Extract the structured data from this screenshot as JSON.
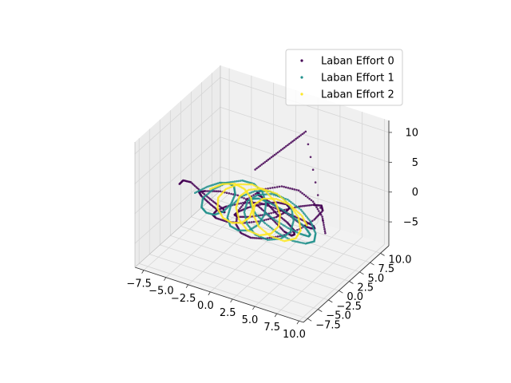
{
  "chart_data": {
    "type": "scatter",
    "projection": "3d",
    "title": "",
    "xlabel": "",
    "ylabel": "",
    "zlabel": "",
    "xlim": [
      -8.5,
      10.5
    ],
    "ylim": [
      -8.5,
      12
    ],
    "zlim": [
      -9,
      12
    ],
    "x_ticks": [
      "−7.5",
      "−5.0",
      "−2.5",
      "0.0",
      "2.5",
      "5.0",
      "7.5",
      "10.0"
    ],
    "y_ticks": [
      "−7.5",
      "−5.0",
      "−2.5",
      "0.0",
      "2.5",
      "5.0",
      "7.5",
      "10.0"
    ],
    "z_ticks": [
      "−5",
      "0",
      "5",
      "10"
    ],
    "x_tick_values": [
      -7.5,
      -5,
      -2.5,
      0,
      2.5,
      5,
      7.5,
      10
    ],
    "y_tick_values": [
      -7.5,
      -5,
      -2.5,
      0,
      2.5,
      5,
      7.5,
      10
    ],
    "z_tick_values": [
      -5,
      0,
      5,
      10
    ],
    "grid": true,
    "legend_position": "top-right",
    "series": [
      {
        "name": "Laban Effort 0",
        "color": "#440154",
        "points": [
          [
            -7,
            -1,
            1
          ],
          [
            -6.2,
            -1.8,
            2.5
          ],
          [
            -5,
            -2.5,
            3.2
          ],
          [
            -3.6,
            -3,
            2.6
          ],
          [
            -2.5,
            -2.5,
            1.2
          ],
          [
            -1.8,
            -1.5,
            -0.4
          ],
          [
            -2.2,
            -0.4,
            -1.8
          ],
          [
            -3.2,
            0.4,
            -2.6
          ],
          [
            -4.4,
            0.8,
            -2.2
          ],
          [
            -5.2,
            0.4,
            -1.0
          ],
          [
            -5.0,
            -0.6,
            0.4
          ],
          [
            -4.0,
            -1.2,
            1.4
          ],
          [
            -2.4,
            -1.0,
            2.0
          ],
          [
            -0.8,
            -0.2,
            1.6
          ],
          [
            0.6,
            0.8,
            0.4
          ],
          [
            1.4,
            1.6,
            -1.2
          ],
          [
            2.2,
            2.2,
            -2.8
          ],
          [
            3.4,
            2.0,
            -3.8
          ],
          [
            4.6,
            1.2,
            -3.4
          ],
          [
            5.4,
            0.2,
            -2.2
          ],
          [
            5.8,
            -0.8,
            -0.6
          ],
          [
            5.4,
            -1.6,
            1.0
          ],
          [
            4.4,
            -2.0,
            2.2
          ],
          [
            3.2,
            -1.6,
            3.0
          ],
          [
            2.0,
            -0.8,
            3.4
          ],
          [
            1.2,
            0.2,
            2.8
          ],
          [
            0.8,
            1.4,
            1.4
          ],
          [
            1.2,
            2.6,
            0.0
          ],
          [
            2.2,
            3.4,
            -1.4
          ],
          [
            3.6,
            3.6,
            -2.4
          ],
          [
            5.0,
            3.0,
            -2.6
          ],
          [
            6.4,
            2.0,
            -1.8
          ],
          [
            7.4,
            0.8,
            -0.6
          ],
          [
            7.8,
            -0.4,
            0.8
          ],
          [
            7.2,
            -1.4,
            2.0
          ],
          [
            6.0,
            -2.0,
            2.8
          ],
          [
            4.4,
            -2.2,
            3.2
          ],
          [
            2.8,
            -2.6,
            3.6
          ],
          [
            1.2,
            -3.2,
            3.2
          ],
          [
            -0.4,
            -3.8,
            2.2
          ],
          [
            -1.6,
            -3.6,
            0.8
          ],
          [
            -2.4,
            -2.8,
            -0.8
          ],
          [
            -2.6,
            -1.6,
            -2.2
          ],
          [
            -2.0,
            -0.2,
            -3.4
          ],
          [
            -0.8,
            1.0,
            -3.8
          ],
          [
            0.8,
            1.8,
            -3.2
          ],
          [
            2.4,
            2.2,
            -2.0
          ],
          [
            3.6,
            2.0,
            -0.4
          ],
          [
            4.4,
            1.2,
            1.2
          ],
          [
            4.6,
            0.0,
            2.6
          ],
          [
            4.0,
            -1.2,
            3.4
          ],
          [
            2.8,
            -2.0,
            3.0
          ],
          [
            1.4,
            -2.4,
            2.0
          ],
          [
            0.2,
            -2.2,
            0.6
          ],
          [
            -0.6,
            -1.4,
            -0.8
          ],
          [
            -0.8,
            -0.2,
            -2.0
          ],
          [
            -0.2,
            1.2,
            -2.6
          ],
          [
            1.0,
            2.4,
            -2.4
          ],
          [
            2.6,
            3.2,
            -1.4
          ],
          [
            4.4,
            3.4,
            0.0
          ],
          [
            6.2,
            3.0,
            1.4
          ],
          [
            7.6,
            2.0,
            2.6
          ],
          [
            8.4,
            0.6,
            3.0
          ],
          [
            8.2,
            -1.0,
            2.4
          ],
          [
            7.2,
            -2.4,
            1.2
          ],
          [
            5.6,
            -3.2,
            -0.2
          ],
          [
            3.8,
            -3.4,
            -1.4
          ],
          [
            2.0,
            -3.0,
            -2.4
          ],
          [
            0.4,
            -2.0,
            -3.0
          ],
          [
            -0.8,
            -0.6,
            -3.0
          ],
          [
            -1.4,
            1.0,
            -2.2
          ],
          [
            -1.0,
            2.6,
            -0.8
          ],
          [
            0.2,
            3.8,
            0.6
          ],
          [
            2.0,
            4.4,
            1.6
          ],
          [
            4.0,
            4.2,
            2.0
          ],
          [
            6.0,
            3.4,
            1.6
          ],
          [
            7.6,
            2.2,
            0.6
          ],
          [
            8.6,
            0.8,
            -0.8
          ],
          [
            3.0,
            8.0,
            9.0
          ],
          [
            2.0,
            7.0,
            7.5
          ],
          [
            1.0,
            6.0,
            6.0
          ],
          [
            0.0,
            5.0,
            4.5
          ],
          [
            -1.0,
            4.0,
            3.0
          ]
        ]
      },
      {
        "name": "Laban Effort 1",
        "color": "#21918c",
        "points": [
          [
            -6.0,
            0.6,
            -1.0
          ],
          [
            -5.0,
            1.4,
            0.0
          ],
          [
            -3.8,
            1.8,
            1.0
          ],
          [
            -2.6,
            1.4,
            1.8
          ],
          [
            -1.6,
            0.6,
            2.2
          ],
          [
            -1.0,
            -0.4,
            1.8
          ],
          [
            -1.0,
            -1.4,
            0.8
          ],
          [
            -1.6,
            -2.0,
            -0.4
          ],
          [
            -2.6,
            -2.0,
            -1.4
          ],
          [
            -3.8,
            -1.4,
            -2.0
          ],
          [
            -4.8,
            -0.4,
            -2.2
          ],
          [
            -5.2,
            0.8,
            -1.6
          ],
          [
            -4.6,
            2.0,
            -0.6
          ],
          [
            -3.4,
            2.8,
            0.6
          ],
          [
            -1.8,
            3.0,
            1.6
          ],
          [
            -0.2,
            2.4,
            2.2
          ],
          [
            1.2,
            1.4,
            2.2
          ],
          [
            2.2,
            0.2,
            1.6
          ],
          [
            2.6,
            -1.0,
            0.6
          ],
          [
            2.4,
            -2.0,
            -0.6
          ],
          [
            1.6,
            -2.6,
            -1.6
          ],
          [
            0.4,
            -2.6,
            -2.2
          ],
          [
            -0.8,
            -2.0,
            -2.4
          ],
          [
            -1.6,
            -1.0,
            -2.0
          ],
          [
            -1.8,
            0.2,
            -1.0
          ],
          [
            -1.2,
            1.4,
            0.2
          ],
          [
            0.0,
            2.2,
            1.2
          ],
          [
            1.6,
            2.4,
            1.8
          ],
          [
            3.2,
            2.0,
            1.8
          ],
          [
            4.6,
            1.2,
            1.2
          ],
          [
            5.4,
            0.0,
            0.2
          ],
          [
            5.6,
            -1.2,
            -0.8
          ],
          [
            5.0,
            -2.2,
            -1.6
          ],
          [
            3.8,
            -2.8,
            -2.0
          ],
          [
            2.4,
            -2.8,
            -1.8
          ],
          [
            1.2,
            -2.2,
            -1.0
          ],
          [
            0.4,
            -1.2,
            0.0
          ],
          [
            0.2,
            0.0,
            1.0
          ],
          [
            0.8,
            1.2,
            1.6
          ],
          [
            2.0,
            2.0,
            1.8
          ],
          [
            3.6,
            2.4,
            1.4
          ],
          [
            5.2,
            2.2,
            0.6
          ],
          [
            6.6,
            1.6,
            -0.4
          ],
          [
            7.6,
            0.6,
            -1.2
          ],
          [
            8.0,
            -0.6,
            -1.6
          ],
          [
            7.6,
            -1.8,
            -1.4
          ],
          [
            6.6,
            -2.8,
            -0.8
          ],
          [
            5.2,
            -3.2,
            0.0
          ],
          [
            3.6,
            -3.0,
            0.8
          ],
          [
            2.2,
            -2.4,
            1.4
          ],
          [
            1.2,
            -1.4,
            1.8
          ],
          [
            0.8,
            -0.2,
            1.8
          ],
          [
            1.0,
            1.0,
            1.2
          ],
          [
            1.8,
            2.0,
            0.2
          ],
          [
            3.0,
            2.6,
            -0.8
          ],
          [
            4.4,
            2.6,
            -1.6
          ],
          [
            5.8,
            2.0,
            -2.0
          ],
          [
            6.8,
            1.0,
            -2.0
          ],
          [
            7.2,
            -0.2,
            -1.4
          ],
          [
            6.8,
            -1.4,
            -0.4
          ],
          [
            5.8,
            -2.2,
            0.6
          ],
          [
            4.4,
            -2.4,
            1.4
          ],
          [
            3.0,
            -2.0,
            1.8
          ]
        ]
      },
      {
        "name": "Laban Effort 2",
        "color": "#fde725",
        "points": [
          [
            -4.0,
            0.0,
            1.0
          ],
          [
            -3.0,
            0.8,
            1.8
          ],
          [
            -1.8,
            1.2,
            2.2
          ],
          [
            -0.6,
            1.0,
            2.0
          ],
          [
            0.4,
            0.4,
            1.4
          ],
          [
            1.0,
            -0.4,
            0.4
          ],
          [
            1.0,
            -1.2,
            -0.6
          ],
          [
            0.4,
            -1.8,
            -1.4
          ],
          [
            -0.6,
            -2.0,
            -1.8
          ],
          [
            -1.8,
            -1.6,
            -1.8
          ],
          [
            -2.8,
            -0.8,
            -1.2
          ],
          [
            -3.2,
            0.2,
            -0.2
          ],
          [
            -2.8,
            1.2,
            0.8
          ],
          [
            -1.8,
            2.0,
            1.6
          ],
          [
            -0.4,
            2.4,
            2.0
          ],
          [
            1.2,
            2.2,
            1.8
          ],
          [
            2.6,
            1.6,
            1.0
          ],
          [
            3.6,
            0.6,
            0.0
          ],
          [
            4.0,
            -0.6,
            -1.0
          ],
          [
            3.6,
            -1.6,
            -1.8
          ],
          [
            2.6,
            -2.2,
            -2.2
          ],
          [
            1.2,
            -2.2,
            -2.0
          ],
          [
            0.0,
            -1.6,
            -1.2
          ],
          [
            -0.8,
            -0.6,
            -0.2
          ],
          [
            -1.0,
            0.6,
            0.8
          ],
          [
            -0.4,
            1.6,
            1.6
          ],
          [
            0.8,
            2.2,
            2.0
          ],
          [
            2.4,
            2.4,
            1.8
          ],
          [
            4.0,
            2.0,
            1.0
          ],
          [
            5.4,
            1.2,
            0.0
          ],
          [
            6.2,
            0.0,
            -1.0
          ],
          [
            6.2,
            -1.2,
            -1.6
          ],
          [
            5.4,
            -2.2,
            -1.8
          ],
          [
            4.0,
            -2.6,
            -1.4
          ],
          [
            2.6,
            -2.4,
            -0.6
          ],
          [
            1.6,
            -1.6,
            0.4
          ],
          [
            1.2,
            -0.4,
            1.2
          ],
          [
            1.6,
            0.8,
            1.6
          ],
          [
            2.6,
            1.8,
            1.4
          ],
          [
            4.0,
            2.2,
            0.8
          ],
          [
            5.4,
            2.0,
            -0.2
          ],
          [
            6.4,
            1.2,
            -1.0
          ]
        ]
      }
    ]
  }
}
